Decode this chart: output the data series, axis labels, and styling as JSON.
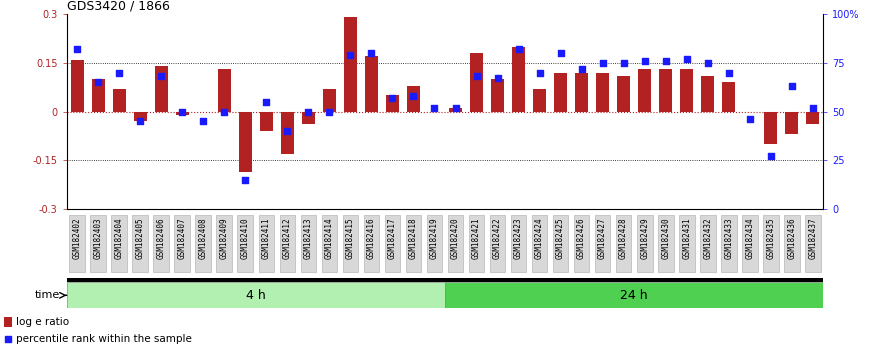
{
  "title": "GDS3420 / 1866",
  "samples": [
    "GSM182402",
    "GSM182403",
    "GSM182404",
    "GSM182405",
    "GSM182406",
    "GSM182407",
    "GSM182408",
    "GSM182409",
    "GSM182410",
    "GSM182411",
    "GSM182412",
    "GSM182413",
    "GSM182414",
    "GSM182415",
    "GSM182416",
    "GSM182417",
    "GSM182418",
    "GSM182419",
    "GSM182420",
    "GSM182421",
    "GSM182422",
    "GSM182423",
    "GSM182424",
    "GSM182425",
    "GSM182426",
    "GSM182427",
    "GSM182428",
    "GSM182429",
    "GSM182430",
    "GSM182431",
    "GSM182432",
    "GSM182433",
    "GSM182434",
    "GSM182435",
    "GSM182436",
    "GSM182437"
  ],
  "log_ratio": [
    0.16,
    0.1,
    0.07,
    -0.03,
    0.14,
    -0.01,
    0.0,
    0.13,
    -0.185,
    -0.06,
    -0.13,
    -0.04,
    0.07,
    0.29,
    0.17,
    0.05,
    0.08,
    0.0,
    0.01,
    0.18,
    0.1,
    0.2,
    0.07,
    0.12,
    0.12,
    0.12,
    0.11,
    0.13,
    0.13,
    0.13,
    0.11,
    0.09,
    0.0,
    -0.1,
    -0.07,
    -0.04
  ],
  "percentile": [
    82,
    65,
    70,
    45,
    68,
    50,
    45,
    50,
    15,
    55,
    40,
    50,
    50,
    79,
    80,
    57,
    58,
    52,
    52,
    68,
    67,
    82,
    70,
    80,
    72,
    75,
    75,
    76,
    76,
    77,
    75,
    70,
    46,
    27,
    63,
    52
  ],
  "bar_color": "#b22222",
  "dot_color": "#1a1aff",
  "bg_color": "#ffffff",
  "ylim_left": [
    -0.3,
    0.3
  ],
  "ylim_right": [
    0,
    100
  ],
  "yticks_left": [
    -0.3,
    -0.15,
    0,
    0.15,
    0.3
  ],
  "yticks_right": [
    0,
    25,
    50,
    75,
    100
  ],
  "ytick_labels_left": [
    "-0.3",
    "-0.15",
    "0",
    "0.15",
    "0.3"
  ],
  "ytick_labels_right": [
    "0",
    "25",
    "50",
    "75",
    "100%"
  ],
  "group1_label": "4 h",
  "group1_count": 18,
  "group2_label": "24 h",
  "group2_count": 18,
  "group1_color": "#b2f0b2",
  "group2_color": "#50d050",
  "time_label": "time",
  "legend_bar_label": "log e ratio",
  "legend_dot_label": "percentile rank within the sample",
  "title_fontsize": 9,
  "tick_label_fontsize": 5.5,
  "axis_tick_fontsize": 7,
  "bar_width": 0.6,
  "dot_size": 18
}
